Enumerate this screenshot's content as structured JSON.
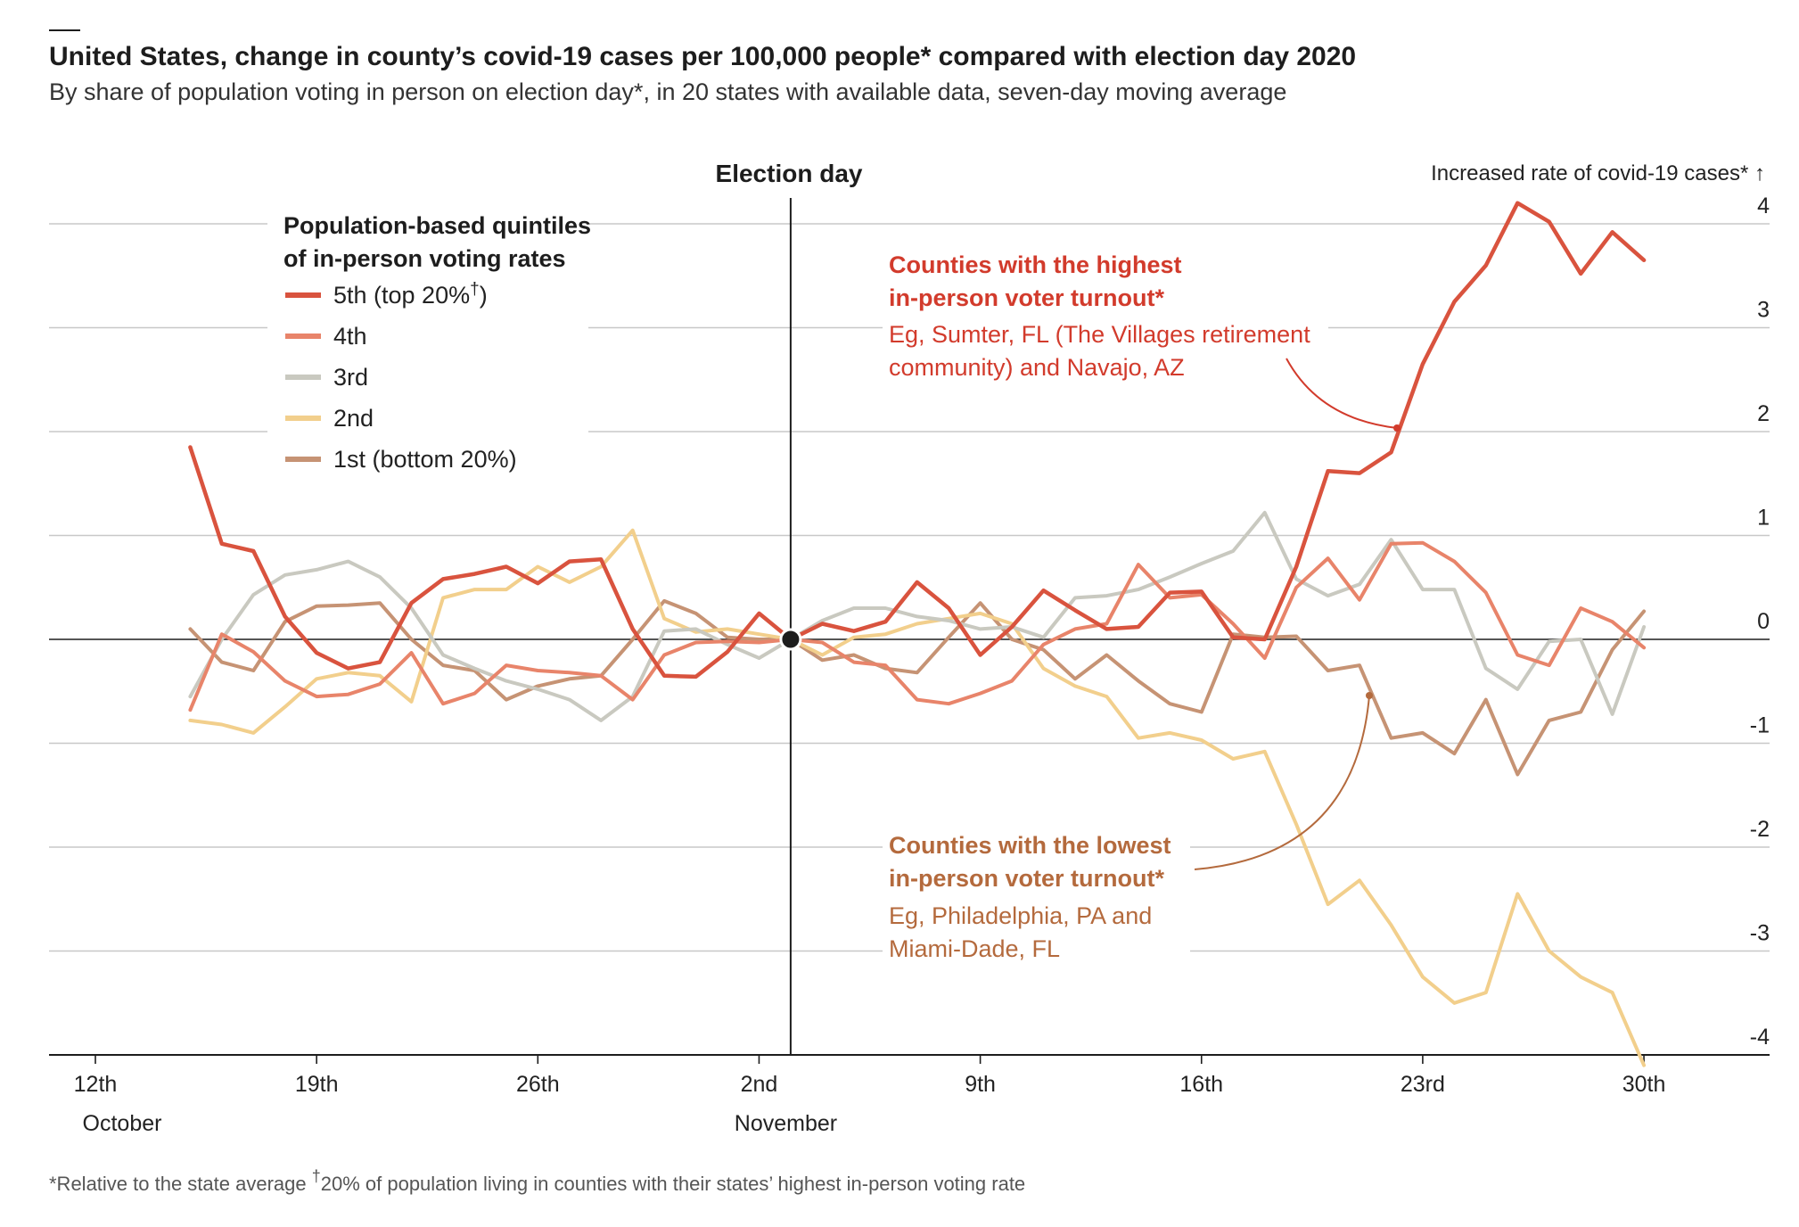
{
  "title": "United States, change in county’s covid-19 cases per 100,000 people* compared with election day 2020",
  "subtitle": "By share of population voting in person on election day*, in 20 states with available data, seven-day moving average",
  "election_day_label": "Election day",
  "y_axis_caption": "Increased rate of covid-19 cases* ↑",
  "legend": {
    "title_line1": "Population-based quintiles",
    "title_line2": "of in-person voting rates",
    "items": [
      {
        "label": "5th (top 20%",
        "dagger": "†",
        "suffix": ")"
      },
      {
        "label": "4th"
      },
      {
        "label": "3rd"
      },
      {
        "label": "2nd"
      },
      {
        "label": "1st (bottom 20%)"
      }
    ]
  },
  "annotations": {
    "high": {
      "bold_line1": "Counties with the highest",
      "bold_line2": "in-person voter turnout*",
      "line1": "Eg, Sumter, FL (The Villages retirement",
      "line2": "community) and Navajo, AZ"
    },
    "low": {
      "bold_line1": "Counties with the lowest",
      "bold_line2": "in-person voter turnout*",
      "line1": "Eg, Philadelphia, PA and",
      "line2": "Miami-Dade, FL"
    }
  },
  "footnote": {
    "part1": "*Relative to the state average ",
    "dagger": "†",
    "part2": "20% of population living in counties with their states’ highest in-person voting rate"
  },
  "colors": {
    "q5": "#d9533e",
    "q4": "#e8846a",
    "q3": "#c9c9c0",
    "q2": "#f2cf8c",
    "q1": "#c69374",
    "high_annotation": "#d23b2c",
    "low_annotation": "#b46a3d",
    "grid": "#c8c8c8",
    "zero": "#1d1d1d"
  },
  "chart_data": {
    "type": "line",
    "x_unit": "day (12 = 12 October 2020, 33 = 2 November, 61 = 30 November)",
    "x_ticks": [
      {
        "x": 12,
        "label": "12th",
        "month": "October"
      },
      {
        "x": 19,
        "label": "19th"
      },
      {
        "x": 26,
        "label": "26th"
      },
      {
        "x": 33,
        "label": "2nd",
        "month": "November"
      },
      {
        "x": 40,
        "label": "9th"
      },
      {
        "x": 47,
        "label": "16th"
      },
      {
        "x": 54,
        "label": "23rd"
      },
      {
        "x": 61,
        "label": "30th"
      }
    ],
    "y_ticks": [
      4,
      3,
      2,
      1,
      0,
      -1,
      -2,
      -3,
      -4
    ],
    "ylim": [
      -4,
      4
    ],
    "xlim": [
      10.5,
      64
    ],
    "election_day_x": 34,
    "series": [
      {
        "name": "5th (top 20%†)",
        "color_key": "q5",
        "x": [
          15,
          16,
          17,
          18,
          19,
          20,
          21,
          22,
          23,
          24,
          25,
          26,
          27,
          28,
          29,
          30,
          31,
          32,
          33,
          34,
          35,
          36,
          37,
          38,
          39,
          40,
          41,
          42,
          43,
          44,
          45,
          46,
          47,
          48,
          49,
          50,
          51,
          52,
          53,
          54,
          55,
          56,
          57,
          58,
          59,
          60,
          61
        ],
        "values": [
          1.85,
          0.92,
          0.85,
          0.22,
          -0.13,
          -0.28,
          -0.22,
          0.35,
          0.58,
          0.63,
          0.7,
          0.54,
          0.75,
          0.77,
          0.1,
          -0.35,
          -0.36,
          -0.12,
          0.25,
          0.0,
          0.15,
          0.08,
          0.17,
          0.55,
          0.3,
          -0.15,
          0.12,
          0.47,
          0.28,
          0.1,
          0.12,
          0.45,
          0.46,
          0.02,
          0.0,
          0.7,
          1.62,
          1.6,
          1.8,
          2.65,
          3.25,
          3.6,
          4.2,
          4.02,
          3.52,
          3.92,
          3.65
        ]
      },
      {
        "name": "4th",
        "color_key": "q4",
        "x": [
          15,
          16,
          17,
          18,
          19,
          20,
          21,
          22,
          23,
          24,
          25,
          26,
          27,
          28,
          29,
          30,
          31,
          32,
          33,
          34,
          35,
          36,
          37,
          38,
          39,
          40,
          41,
          42,
          43,
          44,
          45,
          46,
          47,
          48,
          49,
          50,
          51,
          52,
          53,
          54,
          55,
          56,
          57,
          58,
          59,
          60,
          61
        ],
        "values": [
          -0.68,
          0.05,
          -0.12,
          -0.4,
          -0.55,
          -0.53,
          -0.43,
          -0.13,
          -0.62,
          -0.52,
          -0.25,
          -0.3,
          -0.32,
          -0.35,
          -0.58,
          -0.15,
          -0.03,
          -0.02,
          -0.03,
          0.0,
          -0.03,
          -0.22,
          -0.25,
          -0.58,
          -0.62,
          -0.52,
          -0.4,
          -0.05,
          0.1,
          0.15,
          0.72,
          0.4,
          0.43,
          0.15,
          -0.18,
          0.5,
          0.78,
          0.38,
          0.92,
          0.93,
          0.75,
          0.45,
          -0.15,
          -0.25,
          0.3,
          0.17,
          -0.08
        ]
      },
      {
        "name": "3rd",
        "color_key": "q3",
        "x": [
          15,
          16,
          17,
          18,
          19,
          20,
          21,
          22,
          23,
          24,
          25,
          26,
          27,
          28,
          29,
          30,
          31,
          32,
          33,
          34,
          35,
          36,
          37,
          38,
          39,
          40,
          41,
          42,
          43,
          44,
          45,
          46,
          47,
          48,
          49,
          50,
          51,
          52,
          53,
          54,
          55,
          56,
          57,
          58,
          59,
          60,
          61
        ],
        "values": [
          -0.55,
          0.0,
          0.43,
          0.62,
          0.67,
          0.75,
          0.6,
          0.3,
          -0.15,
          -0.28,
          -0.4,
          -0.48,
          -0.58,
          -0.78,
          -0.55,
          0.08,
          0.1,
          -0.05,
          -0.18,
          0.0,
          0.18,
          0.3,
          0.3,
          0.22,
          0.18,
          0.1,
          0.12,
          0.02,
          0.4,
          0.42,
          0.48,
          0.6,
          0.73,
          0.85,
          1.22,
          0.58,
          0.42,
          0.53,
          0.96,
          0.48,
          0.48,
          -0.28,
          -0.48,
          -0.02,
          0.0,
          -0.72,
          0.12
        ]
      },
      {
        "name": "2nd",
        "color_key": "q2",
        "x": [
          15,
          16,
          17,
          18,
          19,
          20,
          21,
          22,
          23,
          24,
          25,
          26,
          27,
          28,
          29,
          30,
          31,
          32,
          33,
          34,
          35,
          36,
          37,
          38,
          39,
          40,
          41,
          42,
          43,
          44,
          45,
          46,
          47,
          48,
          49,
          50,
          51,
          52,
          53,
          54,
          55,
          56,
          57,
          58,
          59,
          60,
          61
        ],
        "values": [
          -0.78,
          -0.82,
          -0.9,
          -0.65,
          -0.38,
          -0.32,
          -0.35,
          -0.6,
          0.4,
          0.48,
          0.48,
          0.7,
          0.55,
          0.7,
          1.05,
          0.2,
          0.07,
          0.1,
          0.05,
          0.0,
          -0.15,
          0.02,
          0.05,
          0.15,
          0.2,
          0.25,
          0.15,
          -0.28,
          -0.45,
          -0.55,
          -0.95,
          -0.9,
          -0.97,
          -1.15,
          -1.08,
          -1.78,
          -2.55,
          -2.32,
          -2.75,
          -3.25,
          -3.5,
          -3.4,
          -2.45,
          -3.0,
          -3.25,
          -3.4,
          -4.1
        ]
      },
      {
        "name": "1st (bottom 20%)",
        "color_key": "q1",
        "x": [
          15,
          16,
          17,
          18,
          19,
          20,
          21,
          22,
          23,
          24,
          25,
          26,
          27,
          28,
          29,
          30,
          31,
          32,
          33,
          34,
          35,
          36,
          37,
          38,
          39,
          40,
          41,
          42,
          43,
          44,
          45,
          46,
          47,
          48,
          49,
          50,
          51,
          52,
          53,
          54,
          55,
          56,
          57,
          58,
          59,
          60,
          61
        ],
        "values": [
          0.1,
          -0.22,
          -0.3,
          0.17,
          0.32,
          0.33,
          0.35,
          0.0,
          -0.25,
          -0.3,
          -0.58,
          -0.45,
          -0.38,
          -0.35,
          0.0,
          0.37,
          0.25,
          0.02,
          0.0,
          0.0,
          -0.2,
          -0.15,
          -0.28,
          -0.32,
          0.02,
          0.35,
          0.0,
          -0.1,
          -0.38,
          -0.15,
          -0.4,
          -0.62,
          -0.7,
          0.05,
          0.02,
          0.03,
          -0.3,
          -0.25,
          -0.95,
          -0.9,
          -1.1,
          -0.58,
          -1.3,
          -0.78,
          -0.7,
          -0.1,
          0.27
        ]
      }
    ]
  }
}
